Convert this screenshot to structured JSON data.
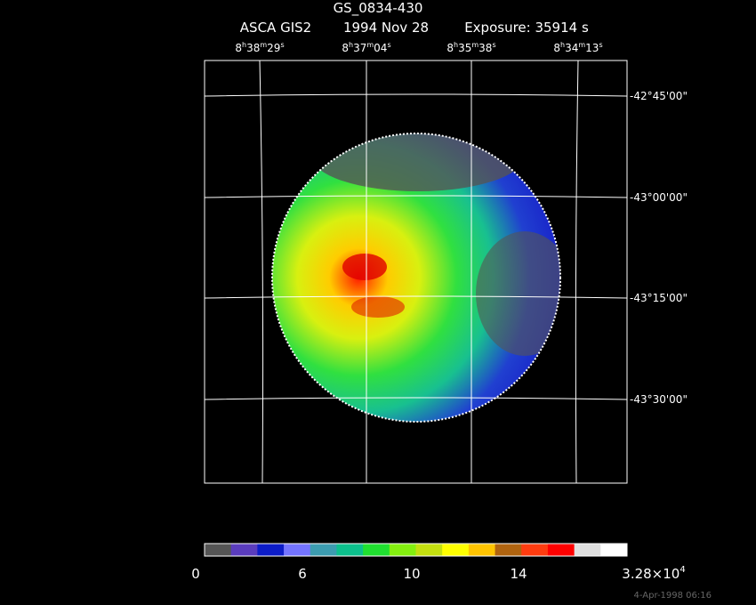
{
  "header": {
    "title": "GS_0834-430",
    "instrument": "ASCA GIS2",
    "date": "1994 Nov 28",
    "exposure": "Exposure: 35914 s"
  },
  "ra_labels": [
    [
      "8",
      "h",
      "38",
      "m",
      "29",
      "s"
    ],
    [
      "8",
      "h",
      "37",
      "m",
      "04",
      "s"
    ],
    [
      "8",
      "h",
      "35",
      "m",
      "38",
      "s"
    ],
    [
      "8",
      "h",
      "34",
      "m",
      "13",
      "s"
    ]
  ],
  "dec_labels": [
    "-42°45'00\"",
    "-43°00'00\"",
    "-43°15'00\"",
    "-43°30'00\""
  ],
  "colorbar": {
    "colors": [
      "#555555",
      "#5a3cbd",
      "#0c1cc8",
      "#7474ff",
      "#3c9cb0",
      "#0cc08c",
      "#20e030",
      "#84f010",
      "#c4e010",
      "#ffff00",
      "#ffc400",
      "#b06410",
      "#ff3c10",
      "#ff0000",
      "#e0e0e0",
      "#ffffff"
    ],
    "labels": [
      [
        "0"
      ],
      [
        "6"
      ],
      [
        "10"
      ],
      [
        "14"
      ],
      [
        "3.28×10",
        "4"
      ]
    ]
  },
  "footer": "4-Apr-1998 06:16"
}
